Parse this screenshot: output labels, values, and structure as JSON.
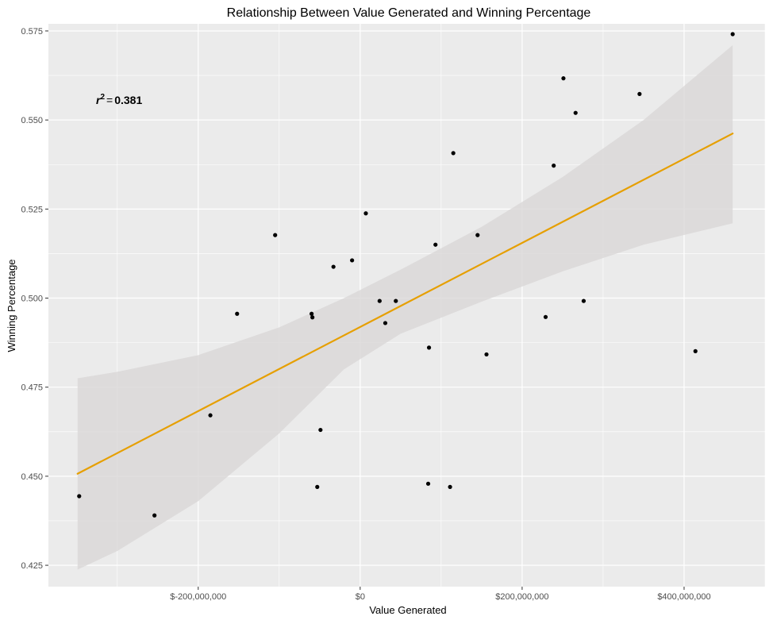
{
  "chart_data": {
    "type": "scatter",
    "title": "Relationship Between Value Generated and Winning Percentage",
    "xlabel": "Value Generated",
    "ylabel": "Winning Percentage",
    "xlim": [
      -385000000,
      500000000
    ],
    "ylim": [
      0.419,
      0.577
    ],
    "x_ticks": [
      {
        "value": -200000000,
        "label": "$-200,000,000"
      },
      {
        "value": 0,
        "label": "$0"
      },
      {
        "value": 200000000,
        "label": "$200,000,000"
      },
      {
        "value": 400000000,
        "label": "$400,000,000"
      }
    ],
    "y_ticks": [
      {
        "value": 0.425,
        "label": "0.425"
      },
      {
        "value": 0.45,
        "label": "0.450"
      },
      {
        "value": 0.475,
        "label": "0.475"
      },
      {
        "value": 0.5,
        "label": "0.500"
      },
      {
        "value": 0.525,
        "label": "0.525"
      },
      {
        "value": 0.55,
        "label": "0.550"
      },
      {
        "value": 0.575,
        "label": "0.575"
      }
    ],
    "grid": true,
    "points": [
      {
        "x": -347000000,
        "y": 0.4444
      },
      {
        "x": -254000000,
        "y": 0.439
      },
      {
        "x": -185000000,
        "y": 0.4671
      },
      {
        "x": -152000000,
        "y": 0.4956
      },
      {
        "x": -105000000,
        "y": 0.5177
      },
      {
        "x": -60000000,
        "y": 0.4956
      },
      {
        "x": -59000000,
        "y": 0.4946
      },
      {
        "x": -53000000,
        "y": 0.447
      },
      {
        "x": -49000000,
        "y": 0.463
      },
      {
        "x": -33000000,
        "y": 0.5088
      },
      {
        "x": -10000000,
        "y": 0.5106
      },
      {
        "x": 7000000,
        "y": 0.5238
      },
      {
        "x": 24000000,
        "y": 0.4992
      },
      {
        "x": 31000000,
        "y": 0.493
      },
      {
        "x": 44000000,
        "y": 0.4992
      },
      {
        "x": 84000000,
        "y": 0.4479
      },
      {
        "x": 85000000,
        "y": 0.4861
      },
      {
        "x": 93000000,
        "y": 0.515
      },
      {
        "x": 111000000,
        "y": 0.447
      },
      {
        "x": 115000000,
        "y": 0.5407
      },
      {
        "x": 145000000,
        "y": 0.5177
      },
      {
        "x": 156000000,
        "y": 0.4842
      },
      {
        "x": 229000000,
        "y": 0.4947
      },
      {
        "x": 239000000,
        "y": 0.5372
      },
      {
        "x": 251000000,
        "y": 0.5617
      },
      {
        "x": 266000000,
        "y": 0.552
      },
      {
        "x": 276000000,
        "y": 0.4992
      },
      {
        "x": 345000000,
        "y": 0.5573
      },
      {
        "x": 414000000,
        "y": 0.4851
      },
      {
        "x": 460000000,
        "y": 0.5741
      }
    ],
    "trend_line": {
      "x": [
        -349000000,
        460000000
      ],
      "y": [
        0.4507,
        0.5462
      ],
      "color": "#E69F00"
    },
    "confidence_band": {
      "x": [
        -349000000,
        -300000000,
        -200000000,
        -100000000,
        -20000000,
        50000000,
        150000000,
        250000000,
        350000000,
        460000000
      ],
      "upper": [
        0.4775,
        0.4793,
        0.484,
        0.4918,
        0.5,
        0.508,
        0.52,
        0.534,
        0.55,
        0.571
      ],
      "lower": [
        0.4238,
        0.429,
        0.443,
        0.462,
        0.48,
        0.49,
        0.499,
        0.5075,
        0.515,
        0.521
      ],
      "color": "#d9d7d7"
    },
    "annotation": {
      "symbol": "r",
      "superscript": "2",
      "equals": "=",
      "value": "0.381"
    },
    "colors": {
      "panel": "#ebebeb",
      "grid": "#ffffff",
      "points": "#000000"
    }
  }
}
